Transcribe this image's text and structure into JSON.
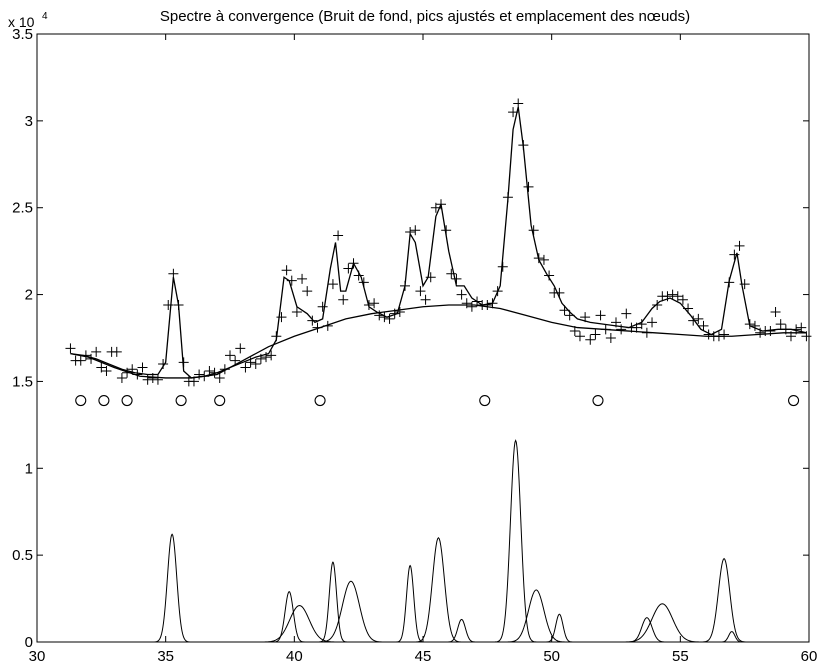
{
  "chart_data": {
    "type": "line",
    "title": "Spectre à convergence (Bruit de fond, pics ajustés et emplacement des nœuds)",
    "y_multiplier": {
      "base": "x 10",
      "exponent": "4"
    },
    "xlim": [
      30,
      60
    ],
    "ylim": [
      0,
      3.5
    ],
    "x_ticks": [
      30,
      35,
      40,
      45,
      50,
      55,
      60
    ],
    "y_ticks": [
      0,
      0.5,
      1,
      1.5,
      2,
      2.5,
      3,
      3.5
    ],
    "x_tick_labels": [
      "30",
      "35",
      "40",
      "45",
      "50",
      "55",
      "60"
    ],
    "y_tick_labels": [
      "0",
      "0.5",
      "1",
      "1.5",
      "2",
      "2.5",
      "3",
      "3.5"
    ],
    "grid": false,
    "series": [
      {
        "type": "scatter",
        "marker": "+",
        "points": [
          [
            31.3,
            1.69
          ],
          [
            31.5,
            1.62
          ],
          [
            31.7,
            1.62
          ],
          [
            31.9,
            1.65
          ],
          [
            32.1,
            1.63
          ],
          [
            32.3,
            1.67
          ],
          [
            32.5,
            1.58
          ],
          [
            32.7,
            1.56
          ],
          [
            32.9,
            1.67
          ],
          [
            33.1,
            1.67
          ],
          [
            33.3,
            1.52
          ],
          [
            33.5,
            1.55
          ],
          [
            33.7,
            1.57
          ],
          [
            33.9,
            1.54
          ],
          [
            34.1,
            1.58
          ],
          [
            34.3,
            1.51
          ],
          [
            34.5,
            1.52
          ],
          [
            34.7,
            1.51
          ],
          [
            34.9,
            1.6
          ],
          [
            35.1,
            1.94
          ],
          [
            35.3,
            2.12
          ],
          [
            35.5,
            1.94
          ],
          [
            35.7,
            1.61
          ],
          [
            35.9,
            1.5
          ],
          [
            36.1,
            1.5
          ],
          [
            36.3,
            1.54
          ],
          [
            36.5,
            1.53
          ],
          [
            36.7,
            1.56
          ],
          [
            36.9,
            1.55
          ],
          [
            37.1,
            1.52
          ],
          [
            37.3,
            1.57
          ],
          [
            37.5,
            1.65
          ],
          [
            37.7,
            1.62
          ],
          [
            37.9,
            1.69
          ],
          [
            38.1,
            1.58
          ],
          [
            38.3,
            1.61
          ],
          [
            38.5,
            1.6
          ],
          [
            38.7,
            1.63
          ],
          [
            38.9,
            1.64
          ],
          [
            39.1,
            1.65
          ],
          [
            39.3,
            1.76
          ],
          [
            39.5,
            1.87
          ],
          [
            39.7,
            2.14
          ],
          [
            39.9,
            2.08
          ],
          [
            40.1,
            1.9
          ],
          [
            40.3,
            2.09
          ],
          [
            40.5,
            2.02
          ],
          [
            40.7,
            1.85
          ],
          [
            40.9,
            1.81
          ],
          [
            41.1,
            1.93
          ],
          [
            41.3,
            1.82
          ],
          [
            41.5,
            2.06
          ],
          [
            41.7,
            2.34
          ],
          [
            41.9,
            1.97
          ],
          [
            42.1,
            2.15
          ],
          [
            42.3,
            2.18
          ],
          [
            42.5,
            2.11
          ],
          [
            42.7,
            2.07
          ],
          [
            42.9,
            1.94
          ],
          [
            43.1,
            1.95
          ],
          [
            43.3,
            1.88
          ],
          [
            43.5,
            1.87
          ],
          [
            43.7,
            1.86
          ],
          [
            43.9,
            1.89
          ],
          [
            44.1,
            1.9
          ],
          [
            44.3,
            2.05
          ],
          [
            44.5,
            2.36
          ],
          [
            44.7,
            2.37
          ],
          [
            44.9,
            2.02
          ],
          [
            45.1,
            1.97
          ],
          [
            45.3,
            2.1
          ],
          [
            45.5,
            2.5
          ],
          [
            45.7,
            2.52
          ],
          [
            45.9,
            2.37
          ],
          [
            46.1,
            2.12
          ],
          [
            46.3,
            2.09
          ],
          [
            46.5,
            2.0
          ],
          [
            46.7,
            1.95
          ],
          [
            46.9,
            1.93
          ],
          [
            47.1,
            1.96
          ],
          [
            47.3,
            1.94
          ],
          [
            47.5,
            1.94
          ],
          [
            47.7,
            1.95
          ],
          [
            47.9,
            2.02
          ],
          [
            48.1,
            2.16
          ],
          [
            48.3,
            2.56
          ],
          [
            48.5,
            3.05
          ],
          [
            48.7,
            3.1
          ],
          [
            48.9,
            2.86
          ],
          [
            49.1,
            2.62
          ],
          [
            49.3,
            2.37
          ],
          [
            49.5,
            2.21
          ],
          [
            49.7,
            2.2
          ],
          [
            49.9,
            2.11
          ],
          [
            50.1,
            2.01
          ],
          [
            50.3,
            2.01
          ],
          [
            50.5,
            1.91
          ],
          [
            50.7,
            1.88
          ],
          [
            50.9,
            1.79
          ],
          [
            51.1,
            1.76
          ],
          [
            51.3,
            1.87
          ],
          [
            51.5,
            1.74
          ],
          [
            51.7,
            1.77
          ],
          [
            51.9,
            1.88
          ],
          [
            52.1,
            1.8
          ],
          [
            52.3,
            1.75
          ],
          [
            52.5,
            1.84
          ],
          [
            52.7,
            1.8
          ],
          [
            52.9,
            1.89
          ],
          [
            53.1,
            1.81
          ],
          [
            53.3,
            1.81
          ],
          [
            53.5,
            1.83
          ],
          [
            53.7,
            1.78
          ],
          [
            53.9,
            1.84
          ],
          [
            54.1,
            1.94
          ],
          [
            54.3,
            1.99
          ],
          [
            54.5,
            1.99
          ],
          [
            54.7,
            2.0
          ],
          [
            54.9,
            1.99
          ],
          [
            55.1,
            1.97
          ],
          [
            55.3,
            1.92
          ],
          [
            55.5,
            1.85
          ],
          [
            55.7,
            1.86
          ],
          [
            55.9,
            1.82
          ],
          [
            56.1,
            1.77
          ],
          [
            56.3,
            1.76
          ],
          [
            56.5,
            1.76
          ],
          [
            56.7,
            1.77
          ],
          [
            56.9,
            2.07
          ],
          [
            57.1,
            2.23
          ],
          [
            57.3,
            2.28
          ],
          [
            57.5,
            2.06
          ],
          [
            57.7,
            1.83
          ],
          [
            57.9,
            1.82
          ],
          [
            58.1,
            1.78
          ],
          [
            58.3,
            1.79
          ],
          [
            58.5,
            1.79
          ],
          [
            58.7,
            1.9
          ],
          [
            58.9,
            1.83
          ],
          [
            59.1,
            1.8
          ],
          [
            59.3,
            1.76
          ],
          [
            59.5,
            1.8
          ],
          [
            59.7,
            1.81
          ],
          [
            59.9,
            1.76
          ]
        ]
      },
      {
        "type": "line",
        "points": [
          [
            31.3,
            1.66
          ],
          [
            31.8,
            1.65
          ],
          [
            32.3,
            1.63
          ],
          [
            32.8,
            1.6
          ],
          [
            33.3,
            1.57
          ],
          [
            33.8,
            1.55
          ],
          [
            34.3,
            1.54
          ],
          [
            34.7,
            1.54
          ],
          [
            35.0,
            1.61
          ],
          [
            35.3,
            2.1
          ],
          [
            35.5,
            1.94
          ],
          [
            35.7,
            1.56
          ],
          [
            36.0,
            1.52
          ],
          [
            36.5,
            1.53
          ],
          [
            37.0,
            1.55
          ],
          [
            37.5,
            1.58
          ],
          [
            38.0,
            1.61
          ],
          [
            38.5,
            1.64
          ],
          [
            39.0,
            1.66
          ],
          [
            39.3,
            1.74
          ],
          [
            39.6,
            2.1
          ],
          [
            39.8,
            2.08
          ],
          [
            40.1,
            1.93
          ],
          [
            40.5,
            1.89
          ],
          [
            40.8,
            1.84
          ],
          [
            41.1,
            1.86
          ],
          [
            41.4,
            2.15
          ],
          [
            41.6,
            2.3
          ],
          [
            41.8,
            2.02
          ],
          [
            42.0,
            2.02
          ],
          [
            42.3,
            2.18
          ],
          [
            42.6,
            2.1
          ],
          [
            42.9,
            1.93
          ],
          [
            43.2,
            1.9
          ],
          [
            43.6,
            1.87
          ],
          [
            44.0,
            1.89
          ],
          [
            44.3,
            2.05
          ],
          [
            44.5,
            2.35
          ],
          [
            44.7,
            2.3
          ],
          [
            45.0,
            2.05
          ],
          [
            45.2,
            2.1
          ],
          [
            45.5,
            2.45
          ],
          [
            45.7,
            2.52
          ],
          [
            46.0,
            2.25
          ],
          [
            46.3,
            2.05
          ],
          [
            46.6,
            2.05
          ],
          [
            46.9,
            1.98
          ],
          [
            47.3,
            1.94
          ],
          [
            47.7,
            1.95
          ],
          [
            48.0,
            2.05
          ],
          [
            48.3,
            2.55
          ],
          [
            48.5,
            2.95
          ],
          [
            48.7,
            3.08
          ],
          [
            48.9,
            2.85
          ],
          [
            49.2,
            2.4
          ],
          [
            49.5,
            2.2
          ],
          [
            49.8,
            2.12
          ],
          [
            50.1,
            2.05
          ],
          [
            50.4,
            1.95
          ],
          [
            50.7,
            1.9
          ],
          [
            51.0,
            1.86
          ],
          [
            51.5,
            1.84
          ],
          [
            52.0,
            1.83
          ],
          [
            52.5,
            1.82
          ],
          [
            53.0,
            1.81
          ],
          [
            53.5,
            1.84
          ],
          [
            53.9,
            1.92
          ],
          [
            54.2,
            1.96
          ],
          [
            54.6,
            1.98
          ],
          [
            55.0,
            1.95
          ],
          [
            55.4,
            1.88
          ],
          [
            55.8,
            1.8
          ],
          [
            56.2,
            1.77
          ],
          [
            56.6,
            1.8
          ],
          [
            56.9,
            2.08
          ],
          [
            57.2,
            2.24
          ],
          [
            57.4,
            2.05
          ],
          [
            57.7,
            1.82
          ],
          [
            58.2,
            1.79
          ],
          [
            58.8,
            1.8
          ],
          [
            59.3,
            1.8
          ],
          [
            59.9,
            1.78
          ]
        ]
      },
      {
        "type": "line",
        "points": [
          [
            31.3,
            1.66
          ],
          [
            32.0,
            1.64
          ],
          [
            33.0,
            1.58
          ],
          [
            34.0,
            1.53
          ],
          [
            35.0,
            1.52
          ],
          [
            36.0,
            1.52
          ],
          [
            37.0,
            1.54
          ],
          [
            38.0,
            1.62
          ],
          [
            39.0,
            1.7
          ],
          [
            40.0,
            1.76
          ],
          [
            41.0,
            1.81
          ],
          [
            42.0,
            1.86
          ],
          [
            43.0,
            1.89
          ],
          [
            44.0,
            1.91
          ],
          [
            45.0,
            1.93
          ],
          [
            46.0,
            1.94
          ],
          [
            47.0,
            1.94
          ],
          [
            48.0,
            1.92
          ],
          [
            49.0,
            1.88
          ],
          [
            50.0,
            1.84
          ],
          [
            51.0,
            1.81
          ],
          [
            52.0,
            1.8
          ],
          [
            53.0,
            1.79
          ],
          [
            54.0,
            1.78
          ],
          [
            55.0,
            1.77
          ],
          [
            56.0,
            1.76
          ],
          [
            57.0,
            1.76
          ],
          [
            58.0,
            1.77
          ],
          [
            59.0,
            1.78
          ],
          [
            59.9,
            1.78
          ]
        ]
      },
      {
        "type": "scatter",
        "marker": "o",
        "points": [
          [
            31.7,
            1.39
          ],
          [
            32.6,
            1.39
          ],
          [
            33.5,
            1.39
          ],
          [
            35.6,
            1.39
          ],
          [
            37.1,
            1.39
          ],
          [
            41.0,
            1.39
          ],
          [
            47.4,
            1.39
          ],
          [
            51.8,
            1.39
          ],
          [
            59.4,
            1.39
          ]
        ]
      }
    ],
    "peaks": [
      {
        "center": 35.25,
        "height": 0.62,
        "sigma": 0.18
      },
      {
        "center": 39.8,
        "height": 0.29,
        "sigma": 0.16
      },
      {
        "center": 40.2,
        "height": 0.21,
        "sigma": 0.38
      },
      {
        "center": 41.5,
        "height": 0.46,
        "sigma": 0.14
      },
      {
        "center": 42.2,
        "height": 0.35,
        "sigma": 0.33
      },
      {
        "center": 44.5,
        "height": 0.44,
        "sigma": 0.14
      },
      {
        "center": 45.6,
        "height": 0.6,
        "sigma": 0.23
      },
      {
        "center": 46.5,
        "height": 0.13,
        "sigma": 0.15
      },
      {
        "center": 48.6,
        "height": 1.16,
        "sigma": 0.2
      },
      {
        "center": 49.4,
        "height": 0.3,
        "sigma": 0.3
      },
      {
        "center": 50.3,
        "height": 0.16,
        "sigma": 0.14
      },
      {
        "center": 53.7,
        "height": 0.14,
        "sigma": 0.2
      },
      {
        "center": 54.3,
        "height": 0.22,
        "sigma": 0.4
      },
      {
        "center": 56.7,
        "height": 0.48,
        "sigma": 0.22
      },
      {
        "center": 57.0,
        "height": 0.06,
        "sigma": 0.12
      }
    ]
  }
}
